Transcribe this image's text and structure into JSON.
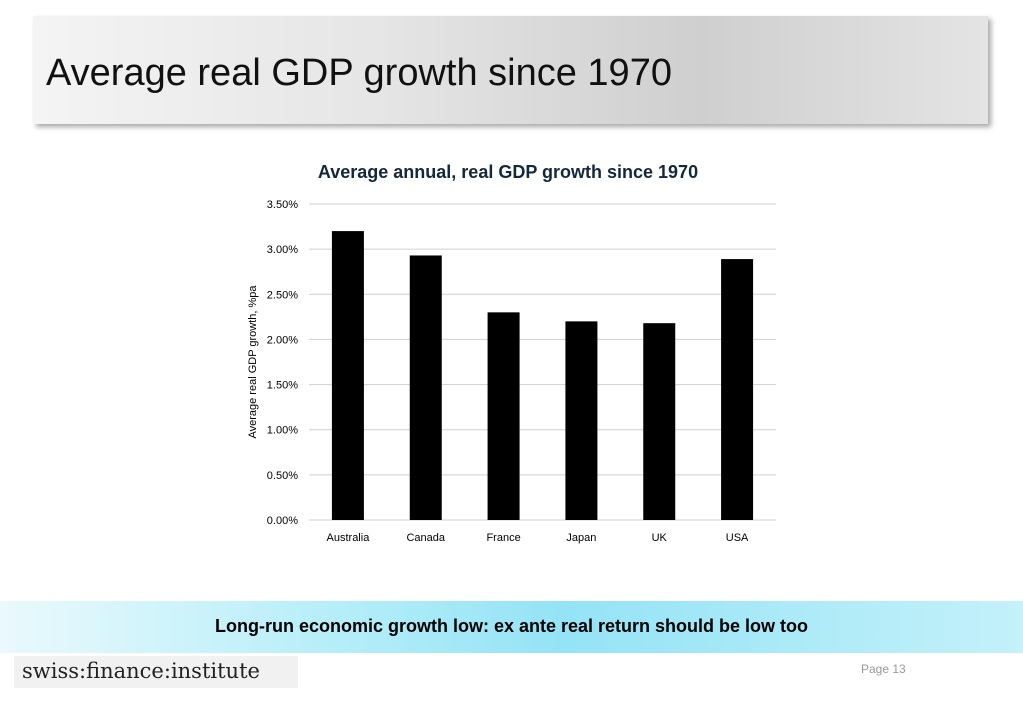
{
  "slide": {
    "title": "Average real GDP growth since 1970",
    "takeaway": "Long-run economic growth low: ex ante real return should be low too",
    "logo": "swiss:finance:institute",
    "page": "Page 13"
  },
  "colors": {
    "bar": "#000000",
    "gridline": "#d0d0d0",
    "chart_title": "#14283c"
  },
  "chart_data": {
    "type": "bar",
    "title": "Average annual, real GDP growth since 1970",
    "xlabel": "",
    "ylabel": "Average real GDP growth, %pa",
    "categories": [
      "Australia",
      "Canada",
      "France",
      "Japan",
      "UK",
      "USA"
    ],
    "values": [
      3.2,
      2.93,
      2.3,
      2.2,
      2.18,
      2.89
    ],
    "value_unit": "%",
    "ylim": [
      0,
      3.5
    ],
    "yticks": [
      0,
      0.5,
      1.0,
      1.5,
      2.0,
      2.5,
      3.0,
      3.5
    ],
    "ytick_labels": [
      "0.00%",
      "0.50%",
      "1.00%",
      "1.50%",
      "2.00%",
      "2.50%",
      "3.00%",
      "3.50%"
    ],
    "grid": true,
    "legend": "none"
  }
}
